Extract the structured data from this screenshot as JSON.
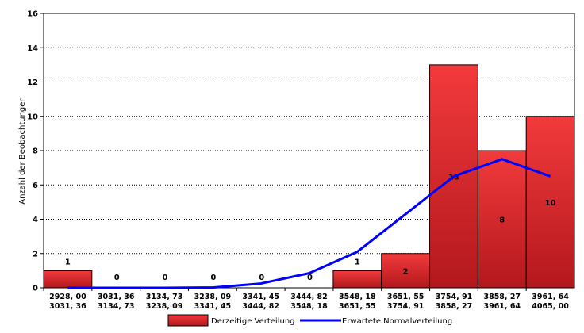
{
  "chart_data": {
    "type": "bar",
    "ylabel": "Anzahl der Beobachtungen",
    "ylim": [
      0,
      16
    ],
    "yticks": [
      "0",
      "2",
      "4",
      "6",
      "8",
      "10",
      "12",
      "14",
      "16"
    ],
    "grid": "horizontal dotted",
    "categories": [
      [
        "2928, 00",
        "3031, 36"
      ],
      [
        "3031, 36",
        "3134, 73"
      ],
      [
        "3134, 73",
        "3238, 09"
      ],
      [
        "3238, 09",
        "3341, 45"
      ],
      [
        "3341, 45",
        "3444, 82"
      ],
      [
        "3444, 82",
        "3548, 18"
      ],
      [
        "3548, 18",
        "3651, 55"
      ],
      [
        "3651, 55",
        "3754, 91"
      ],
      [
        "3754, 91",
        "3858, 27"
      ],
      [
        "3858, 27",
        "3961, 64"
      ],
      [
        "3961, 64",
        "4065, 00"
      ]
    ],
    "series": [
      {
        "name": "Derzeitige Verteilung",
        "kind": "bar",
        "color": "#e8262b",
        "values": [
          1,
          0,
          0,
          0,
          0,
          0,
          1,
          2,
          13,
          8,
          10
        ],
        "labels": [
          "1",
          "0",
          "0",
          "0",
          "0",
          "0",
          "1",
          "2",
          "13",
          "8",
          "10"
        ]
      },
      {
        "name": "Erwartete Normalverteilung",
        "kind": "line",
        "color": "#0000ff",
        "values": [
          0.0,
          0.0,
          0.0,
          0.02,
          0.25,
          0.85,
          2.1,
          4.3,
          6.5,
          7.5,
          6.5
        ]
      }
    ],
    "legend_position": "bottom"
  }
}
